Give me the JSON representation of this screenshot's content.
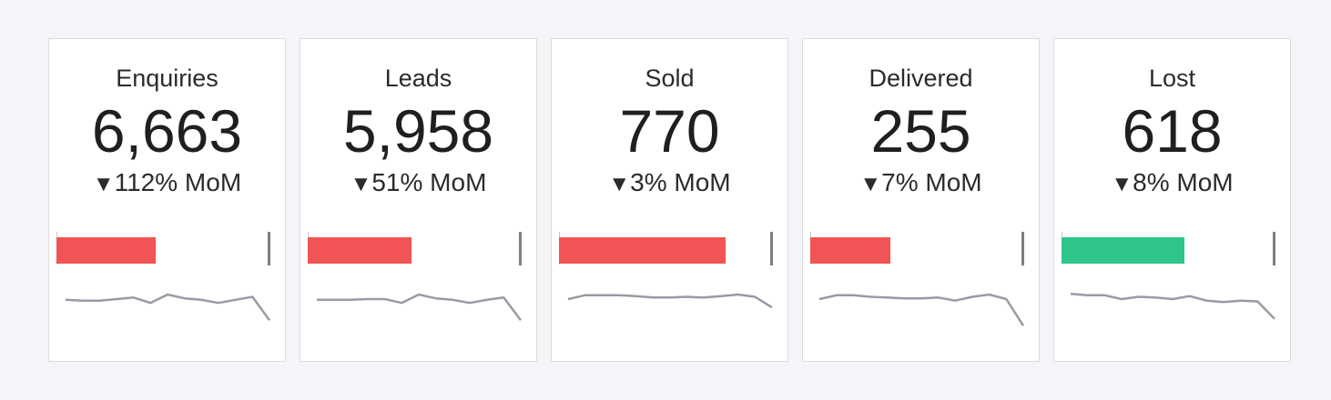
{
  "colors": {
    "negative": "#f05454",
    "positive": "#2ec58b",
    "target": "#7d7d85",
    "sparkline": "#9a9aa5"
  },
  "icons": {
    "delta": "down-triangle-icon"
  },
  "cards": [
    {
      "title": "Enquiries",
      "value": "6,663",
      "arrow": "▼",
      "delta": "112% MoM",
      "progress": 0.47,
      "status": "negative",
      "trend": [
        25,
        26,
        26,
        24,
        22,
        29,
        18,
        23,
        25,
        29,
        25,
        21,
        52
      ]
    },
    {
      "title": "Leads",
      "value": "5,958",
      "arrow": "▼",
      "delta": "51% MoM",
      "progress": 0.49,
      "status": "negative",
      "trend": [
        25,
        25,
        25,
        24,
        24,
        29,
        18,
        23,
        25,
        29,
        25,
        22,
        52
      ]
    },
    {
      "title": "Sold",
      "value": "770",
      "arrow": "▼",
      "delta": "3% MoM",
      "progress": 0.79,
      "status": "negative",
      "trend": [
        24,
        19,
        19,
        19,
        20,
        22,
        22,
        21,
        22,
        20,
        18,
        21,
        35
      ]
    },
    {
      "title": "Delivered",
      "value": "255",
      "arrow": "▼",
      "delta": "7% MoM",
      "progress": 0.38,
      "status": "negative",
      "trend": [
        24,
        19,
        19,
        21,
        22,
        23,
        23,
        22,
        26,
        21,
        18,
        24,
        59
      ]
    },
    {
      "title": "Lost",
      "value": "618",
      "arrow": "▼",
      "delta": "8% MoM",
      "progress": 0.58,
      "status": "positive",
      "trend": [
        17,
        19,
        19,
        24,
        21,
        22,
        24,
        20,
        26,
        28,
        26,
        27,
        50
      ]
    }
  ]
}
